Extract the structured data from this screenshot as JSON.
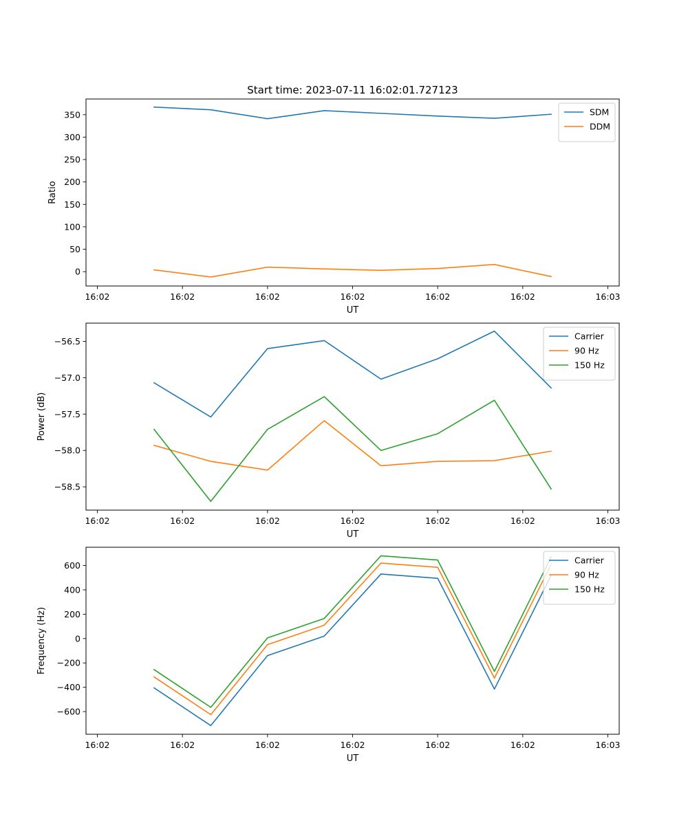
{
  "figure": {
    "title": "Start time: 2023-07-11 16:02:01.727123"
  },
  "chart_data": [
    {
      "type": "line",
      "title": "Start time: 2023-07-11 16:02:01.727123",
      "xlabel": "UT",
      "ylabel": "Ratio",
      "x": [
        0.5,
        1.0,
        1.5,
        2.0,
        2.5,
        3.0,
        3.5,
        4.0
      ],
      "xlim": [
        -0.1,
        4.6
      ],
      "xticks": [
        0,
        0.75,
        1.5,
        2.25,
        3.0,
        3.75,
        4.5
      ],
      "xtick_labels": [
        "16:02",
        "16:02",
        "16:02",
        "16:02",
        "16:02",
        "16:02",
        "16:03"
      ],
      "ylim": [
        -32,
        385
      ],
      "yticks": [
        0,
        50,
        100,
        150,
        200,
        250,
        300,
        350
      ],
      "ytick_labels": [
        "0",
        "50",
        "100",
        "150",
        "200",
        "250",
        "300",
        "350"
      ],
      "legend": "top-right",
      "grid": false,
      "series": [
        {
          "name": "SDM",
          "color": "#1f77b4",
          "values": [
            367,
            361,
            341,
            359,
            353,
            347,
            342,
            351
          ]
        },
        {
          "name": "DDM",
          "color": "#ff7f0e",
          "values": [
            4,
            -12,
            10,
            6,
            3,
            7,
            16,
            -11
          ]
        }
      ]
    },
    {
      "type": "line",
      "xlabel": "UT",
      "ylabel": "Power (dB)",
      "x": [
        0.5,
        1.0,
        1.5,
        2.0,
        2.5,
        3.0,
        3.5,
        4.0
      ],
      "xlim": [
        -0.1,
        4.6
      ],
      "xticks": [
        0,
        0.75,
        1.5,
        2.25,
        3.0,
        3.75,
        4.5
      ],
      "xtick_labels": [
        "16:02",
        "16:02",
        "16:02",
        "16:02",
        "16:02",
        "16:02",
        "16:03"
      ],
      "ylim": [
        -58.82,
        -56.25
      ],
      "yticks": [
        -58.5,
        -58.0,
        -57.5,
        -57.0,
        -56.5
      ],
      "ytick_labels": [
        "−58.5",
        "−58.0",
        "−57.5",
        "−57.0",
        "−56.5"
      ],
      "legend": "top-right",
      "grid": false,
      "series": [
        {
          "name": "Carrier",
          "color": "#1f77b4",
          "values": [
            -57.07,
            -57.54,
            -56.6,
            -56.49,
            -57.02,
            -56.74,
            -56.36,
            -57.14
          ]
        },
        {
          "name": "90 Hz",
          "color": "#ff7f0e",
          "values": [
            -57.93,
            -58.15,
            -58.27,
            -57.59,
            -58.21,
            -58.15,
            -58.14,
            -58.01
          ]
        },
        {
          "name": "150 Hz",
          "color": "#2ca02c",
          "values": [
            -57.71,
            -58.7,
            -57.71,
            -57.26,
            -58.0,
            -57.77,
            -57.31,
            -58.53
          ]
        }
      ]
    },
    {
      "type": "line",
      "xlabel": "UT",
      "ylabel": "Frequency (Hz)",
      "x": [
        0.5,
        1.0,
        1.5,
        2.0,
        2.5,
        3.0,
        3.5,
        4.0
      ],
      "xlim": [
        -0.1,
        4.6
      ],
      "xticks": [
        0,
        0.75,
        1.5,
        2.25,
        3.0,
        3.75,
        4.5
      ],
      "xtick_labels": [
        "16:02",
        "16:02",
        "16:02",
        "16:02",
        "16:02",
        "16:02",
        "16:03"
      ],
      "ylim": [
        -786,
        750
      ],
      "yticks": [
        -600,
        -400,
        -200,
        0,
        200,
        400,
        600
      ],
      "ytick_labels": [
        "−600",
        "−400",
        "−200",
        "0",
        "200",
        "400",
        "600"
      ],
      "legend": "top-right",
      "grid": false,
      "series": [
        {
          "name": "Carrier",
          "color": "#1f77b4",
          "values": [
            -405,
            -715,
            -140,
            20,
            530,
            495,
            -415,
            520
          ]
        },
        {
          "name": "90 Hz",
          "color": "#ff7f0e",
          "values": [
            -315,
            -625,
            -50,
            110,
            620,
            585,
            -325,
            610
          ]
        },
        {
          "name": "150 Hz",
          "color": "#2ca02c",
          "values": [
            -255,
            -565,
            5,
            165,
            680,
            645,
            -270,
            670
          ]
        }
      ]
    }
  ]
}
